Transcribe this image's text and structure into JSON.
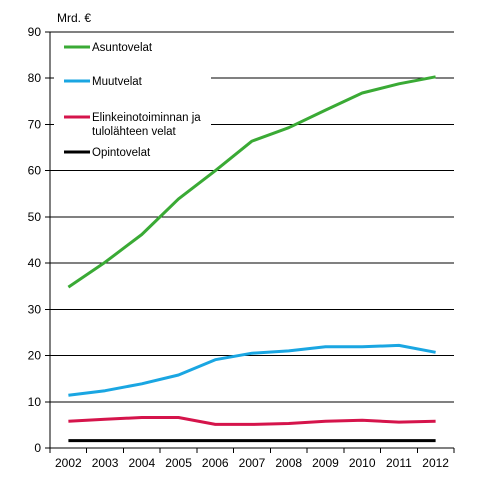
{
  "chart_data": {
    "type": "line",
    "ylabel": "Mrd. €",
    "xlabel": "",
    "title": "",
    "x": [
      2002,
      2003,
      2004,
      2005,
      2006,
      2007,
      2008,
      2009,
      2010,
      2011,
      2012
    ],
    "x_tick_labels": [
      "2002",
      "2003",
      "2004",
      "2005",
      "2006",
      "2007",
      "2008",
      "2009",
      "2010",
      "2011",
      "2012"
    ],
    "ylim": [
      0,
      90
    ],
    "y_ticks": [
      0,
      10,
      20,
      30,
      40,
      50,
      60,
      70,
      80,
      90
    ],
    "y_tick_labels": [
      "0",
      "10",
      "20",
      "30",
      "40",
      "50",
      "60",
      "70",
      "80",
      "90"
    ],
    "grid": "horizontal",
    "legend_placement": "top-left",
    "series": [
      {
        "name": "Asuntovelat",
        "legend_lines": [
          "Asuntovelat"
        ],
        "color": "#3aaa35",
        "values": [
          34.8,
          40.2,
          46.2,
          53.9,
          60.0,
          66.4,
          69.3,
          73.1,
          76.8,
          78.8,
          80.3
        ]
      },
      {
        "name": "Muutvelat",
        "legend_lines": [
          "Muutvelat"
        ],
        "color": "#1aa6e2",
        "values": [
          11.4,
          12.4,
          13.9,
          15.8,
          19.1,
          20.5,
          21.0,
          21.9,
          21.9,
          22.2,
          20.7
        ]
      },
      {
        "name": "Elinkeinotoiminnan ja tulolähteen velat",
        "legend_lines": [
          "Elinkeinotoiminnan ja",
          "tulolähteen velat"
        ],
        "color": "#d5144b",
        "values": [
          5.8,
          6.2,
          6.6,
          6.6,
          5.1,
          5.1,
          5.3,
          5.8,
          6.0,
          5.6,
          5.8
        ]
      },
      {
        "name": "Opintovelat",
        "legend_lines": [
          "Opintovelat"
        ],
        "color": "#000000",
        "values": [
          1.6,
          1.6,
          1.6,
          1.6,
          1.6,
          1.6,
          1.6,
          1.6,
          1.6,
          1.6,
          1.6
        ]
      }
    ]
  }
}
